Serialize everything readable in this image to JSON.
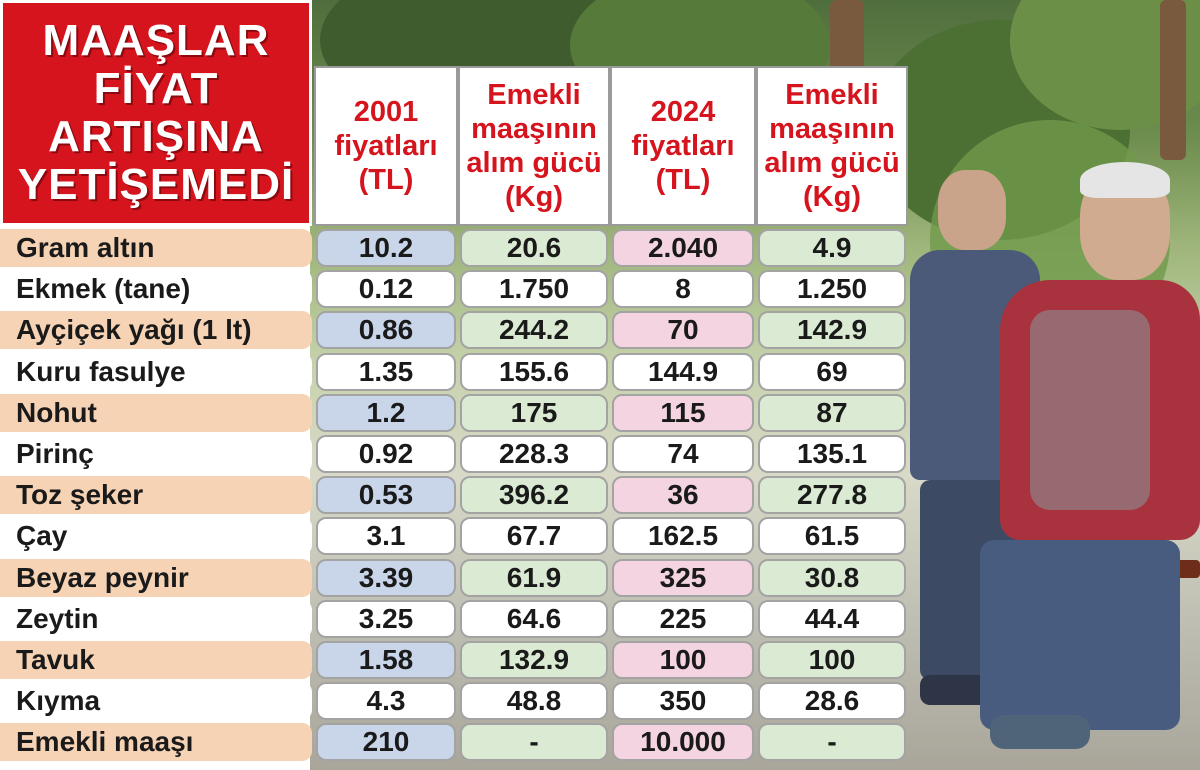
{
  "title": [
    "MAAŞLAR",
    "FİYAT",
    "ARTIŞINA",
    "YETİŞEMEDİ"
  ],
  "columns": [
    "2001\nfiyatları\n(TL)",
    "Emekli\nmaaşının\nalım gücü\n(Kg)",
    "2024\nfiyatları\n(TL)",
    "Emekli\nmaaşının\nalım gücü\n(Kg)"
  ],
  "rows": [
    {
      "label": "Gram altın",
      "values": [
        "10.2",
        "20.6",
        "2.040",
        "4.9"
      ]
    },
    {
      "label": "Ekmek (tane)",
      "values": [
        "0.12",
        "1.750",
        "8",
        "1.250"
      ]
    },
    {
      "label": "Ayçiçek yağı (1 lt)",
      "values": [
        "0.86",
        "244.2",
        "70",
        "142.9"
      ]
    },
    {
      "label": "Kuru fasulye",
      "values": [
        "1.35",
        "155.6",
        "144.9",
        "69"
      ]
    },
    {
      "label": "Nohut",
      "values": [
        "1.2",
        "175",
        "115",
        "87"
      ]
    },
    {
      "label": "Pirinç",
      "values": [
        "0.92",
        "228.3",
        "74",
        "135.1"
      ]
    },
    {
      "label": "Toz şeker",
      "values": [
        "0.53",
        "396.2",
        "36",
        "277.8"
      ]
    },
    {
      "label": "Çay",
      "values": [
        "3.1",
        "67.7",
        "162.5",
        "61.5"
      ]
    },
    {
      "label": "Beyaz peynir",
      "values": [
        "3.39",
        "61.9",
        "325",
        "30.8"
      ]
    },
    {
      "label": "Zeytin",
      "values": [
        "3.25",
        "64.6",
        "225",
        "44.4"
      ]
    },
    {
      "label": "Tavuk",
      "values": [
        "1.58",
        "132.9",
        "100",
        "100"
      ]
    },
    {
      "label": "Kıyma",
      "values": [
        "4.3",
        "48.8",
        "350",
        "28.6"
      ]
    },
    {
      "label": "Emekli maaşı",
      "values": [
        "210",
        "-",
        "10.000",
        "-"
      ]
    }
  ],
  "colors": {
    "title_bg": "#d6141d",
    "header_text": "#d6141d",
    "label_alt": "#f6d3b5",
    "col_2001_alt": "#c9d6ea",
    "col_kg_alt": "#dbead2",
    "col_2024_alt": "#f3d4e0",
    "plain": "#ffffff"
  }
}
